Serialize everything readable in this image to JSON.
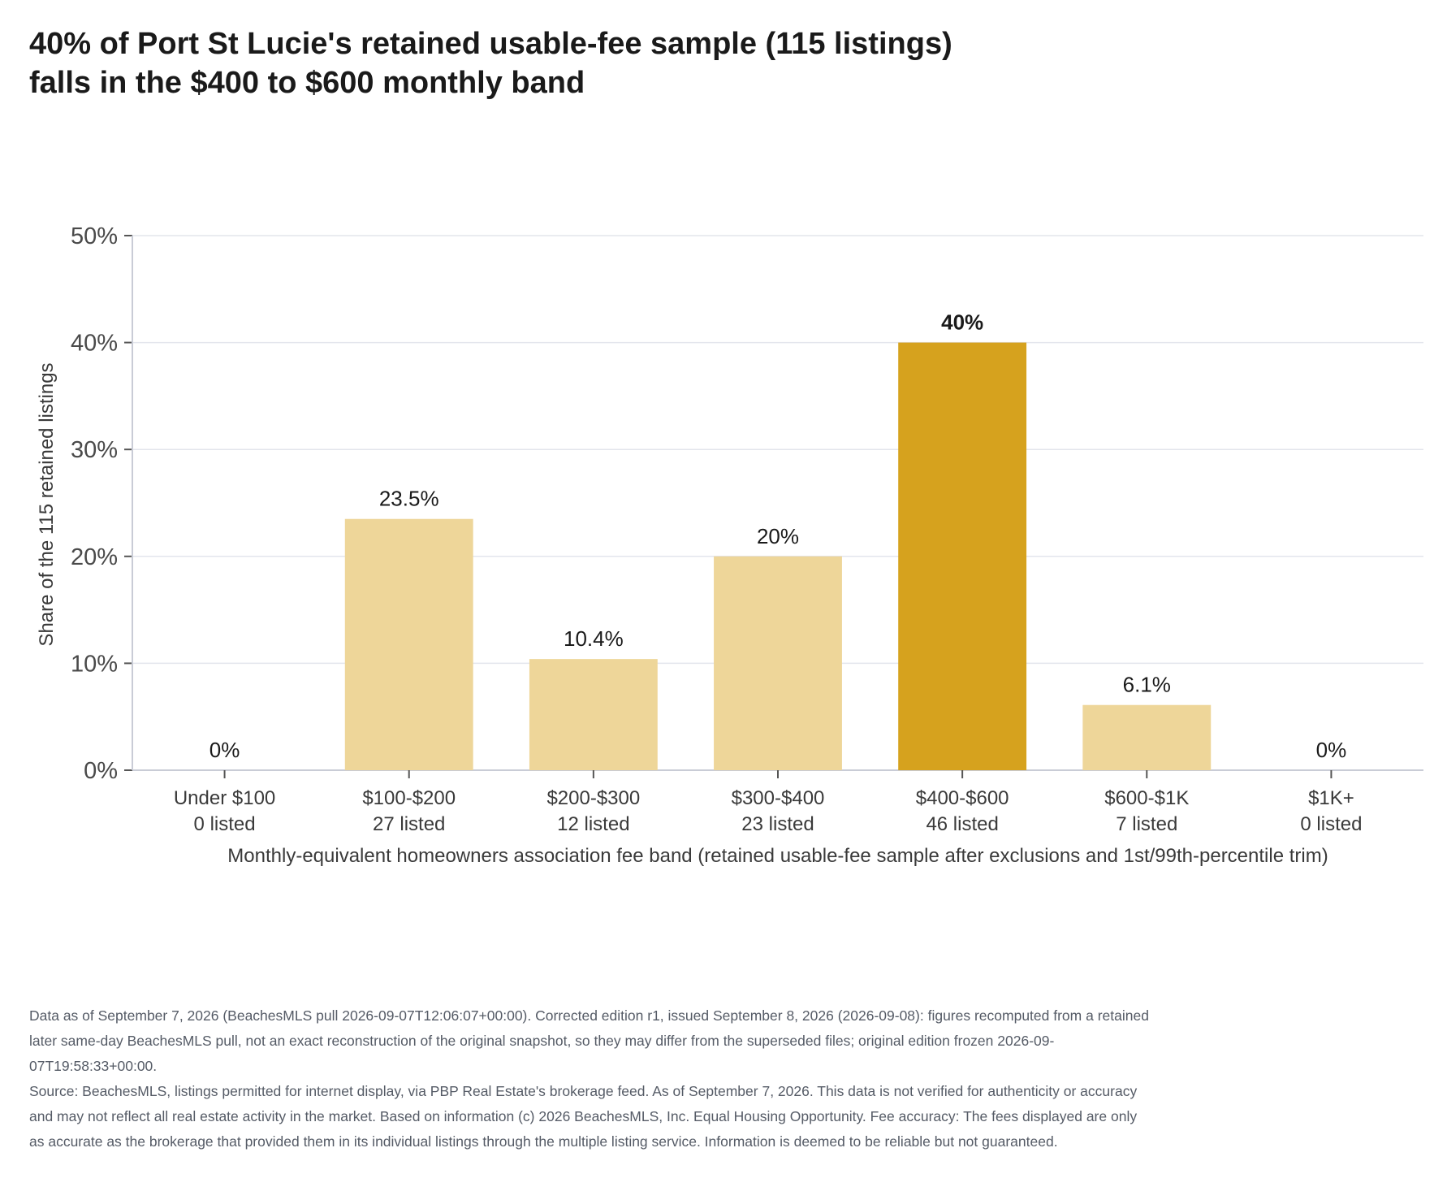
{
  "title_lines": [
    "40% of Port St Lucie's retained usable-fee sample (115 listings)",
    "falls in the $400 to $600 monthly band"
  ],
  "chart_data": {
    "type": "bar",
    "categories": [
      "Under $100",
      "$100-$200",
      "$200-$300",
      "$300-$400",
      "$400-$600",
      "$600-$1K",
      "$1K+"
    ],
    "counts": [
      "0 listed",
      "27 listed",
      "12 listed",
      "23 listed",
      "46 listed",
      "7 listed",
      "0 listed"
    ],
    "values": [
      0,
      23.5,
      10.4,
      20,
      40,
      6.1,
      0
    ],
    "data_labels": [
      "0%",
      "23.5%",
      "10.4%",
      "20%",
      "40%",
      "6.1%",
      "0%"
    ],
    "highlight_index": 4,
    "ylabel": "Share of the 115 retained listings",
    "xlabel": "Monthly-equivalent homeowners association fee band (retained usable-fee sample after exclusions and 1st/99th-percentile trim)",
    "ylim": [
      0,
      50
    ],
    "yticks": [
      0,
      10,
      20,
      30,
      40,
      50
    ],
    "ytick_labels": [
      "0%",
      "10%",
      "20%",
      "30%",
      "40%",
      "50%"
    ],
    "grid": true,
    "colors": {
      "bar": "#eed699",
      "highlight": "#d6a21e",
      "grid": "#e3e5ec",
      "axis": "#c9ccd6"
    }
  },
  "footer": {
    "data_note": "Data as of September 7, 2026 (BeachesMLS pull 2026-09-07T12:06:07+00:00). Corrected edition r1, issued September 8, 2026 (2026-09-08): figures recomputed from a retained later same-day BeachesMLS pull, not an exact reconstruction of the original snapshot, so they may differ from the superseded files; original edition frozen 2026-09-07T19:58:33+00:00.",
    "source_note": "Source: BeachesMLS, listings permitted for internet display, via PBP Real Estate's brokerage feed. As of September 7, 2026. This data is not verified for authenticity or accuracy and may not reflect all real estate activity in the market. Based on information (c) 2026 BeachesMLS, Inc. Equal Housing Opportunity. Fee accuracy: The fees displayed are only as accurate as the brokerage that provided them in its individual listings through the multiple listing service. Information is deemed to be reliable but not guaranteed."
  }
}
